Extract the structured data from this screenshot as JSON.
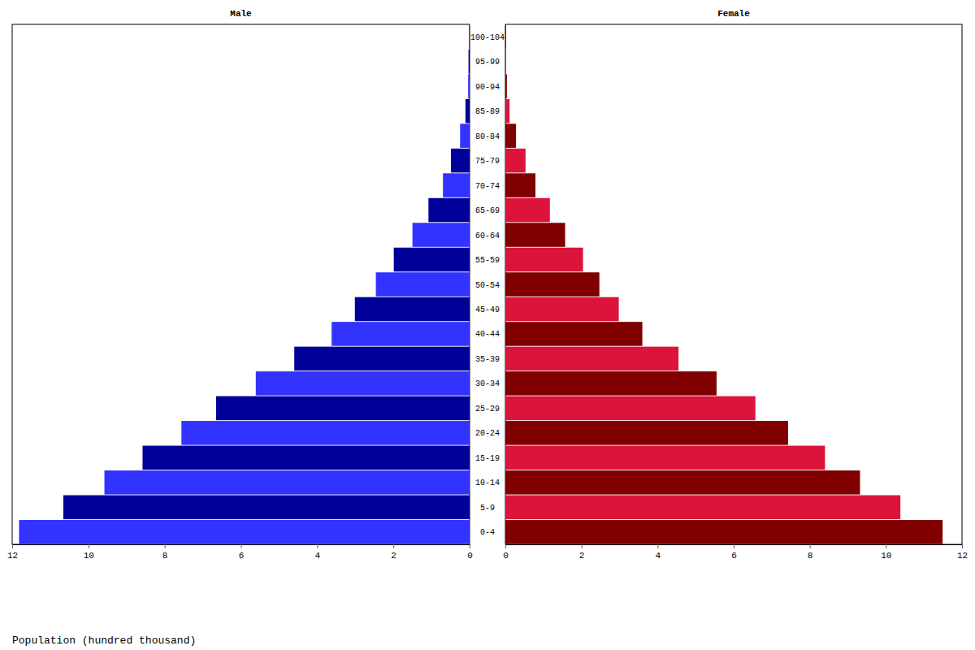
{
  "chart_data": {
    "type": "bar",
    "orientation": "horizontal",
    "x_label": "Population (hundred thousand)",
    "categories": [
      "0-4",
      "5-9",
      "10-14",
      "15-19",
      "20-24",
      "25-29",
      "30-34",
      "35-39",
      "40-44",
      "45-49",
      "50-54",
      "55-59",
      "60-64",
      "65-69",
      "70-74",
      "75-79",
      "80-84",
      "85-89",
      "90-94",
      "95-99",
      "100-104"
    ],
    "xlim": [
      0,
      12
    ],
    "xticks": [
      0,
      2,
      4,
      6,
      8,
      10,
      12
    ],
    "series": [
      {
        "name": "Male",
        "values": [
          11.82,
          10.66,
          9.58,
          8.58,
          7.56,
          6.65,
          5.61,
          4.6,
          3.62,
          3.01,
          2.46,
          1.99,
          1.5,
          1.08,
          0.7,
          0.49,
          0.25,
          0.11,
          0.04,
          0.03,
          0.02
        ],
        "colors": [
          "#3333ff",
          "#000099",
          "#3333ff",
          "#000099",
          "#3333ff",
          "#000099",
          "#3333ff",
          "#000099",
          "#3333ff",
          "#000099",
          "#3333ff",
          "#000099",
          "#3333ff",
          "#000099",
          "#3333ff",
          "#000099",
          "#3333ff",
          "#000099",
          "#3333ff",
          "#000099",
          "#3333ff"
        ]
      },
      {
        "name": "Female",
        "values": [
          11.49,
          10.38,
          9.32,
          8.4,
          7.43,
          6.57,
          5.55,
          4.55,
          3.6,
          2.98,
          2.47,
          2.04,
          1.57,
          1.17,
          0.79,
          0.53,
          0.28,
          0.11,
          0.04,
          0.02,
          0.02
        ],
        "colors": [
          "#800000",
          "#dc143c",
          "#800000",
          "#dc143c",
          "#800000",
          "#dc143c",
          "#800000",
          "#dc143c",
          "#800000",
          "#dc143c",
          "#800000",
          "#dc143c",
          "#800000",
          "#dc143c",
          "#800000",
          "#dc143c",
          "#800000",
          "#dc143c",
          "#800000",
          "#dc143c",
          "#800000"
        ]
      }
    ]
  }
}
